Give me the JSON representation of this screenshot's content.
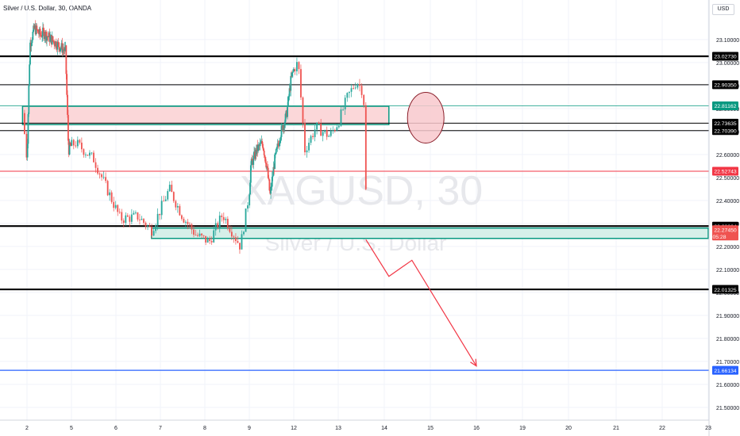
{
  "header": {
    "instrument_title": "Silver / U.S. Dollar, 30, OANDA",
    "currency_button": "USD"
  },
  "watermark": {
    "symbol": "XAGUSD, 30",
    "description": "Silver / U.S. Dollar"
  },
  "colors": {
    "up": "#26a69a",
    "down": "#ef5350",
    "black_level": "#000000",
    "red_level": "#f23645",
    "blue_level": "#2962ff",
    "supply_zone_fill": "#fbd7d9",
    "zone_border": "#089981",
    "demand_zone_fill": "#d6efe9",
    "projection": "#f23645"
  },
  "chart_data": {
    "type": "candlestick",
    "y_axis": {
      "range": [
        21.46,
        23.21
      ],
      "ticks": [
        "23.10000",
        "23.00000",
        "22.90000",
        "22.80000",
        "22.70000",
        "22.60000",
        "22.50000",
        "22.40000",
        "22.30000",
        "22.20000",
        "22.10000",
        "22.00000",
        "21.90000",
        "21.80000",
        "21.70000",
        "21.60000",
        "21.50000"
      ]
    },
    "x_axis": {
      "ticks": [
        "2",
        "5",
        "6",
        "7",
        "8",
        "9",
        "12",
        "13",
        "14",
        "15",
        "16",
        "19",
        "20",
        "21",
        "22",
        "23"
      ]
    },
    "grid": true,
    "price_line": {
      "label": "22.27450",
      "countdown": "05:28"
    },
    "horizontal_levels": [
      {
        "price": 23.0273,
        "label": "23.02730",
        "style": "black_thick"
      },
      {
        "price": 22.9035,
        "label": "22.90350",
        "style": "black"
      },
      {
        "price": 22.81162,
        "label": "22.81162",
        "style": "teal"
      },
      {
        "price": 22.73635,
        "label": "22.73635",
        "style": "black"
      },
      {
        "price": 22.7039,
        "label": "22.70390",
        "style": "black"
      },
      {
        "price": 22.52743,
        "label": "22.52743",
        "style": "red"
      },
      {
        "price": 22.28864,
        "label": "22.28864",
        "style": "black_thick"
      },
      {
        "price": 22.01325,
        "label": "22.01325",
        "style": "black_thick"
      },
      {
        "price": 21.66134,
        "label": "21.66134",
        "style": "blue"
      }
    ],
    "zones": [
      {
        "kind": "supply",
        "price_top": 22.81,
        "price_bottom": 22.73,
        "from_day": 1.9,
        "to_day": 14.1
      },
      {
        "kind": "demand",
        "price_top": 22.28,
        "price_bottom": 22.235,
        "from_day": 6.8,
        "to_day": 23.0
      }
    ],
    "projection_path": [
      {
        "day": 13.6,
        "price": 22.23
      },
      {
        "day": 14.1,
        "price": 22.07
      },
      {
        "day": 14.6,
        "price": 22.14
      },
      {
        "day": 16.0,
        "price": 21.68
      }
    ],
    "circle_annotation": {
      "day": 14.9,
      "price": 22.76
    },
    "price_series": [
      {
        "day": 1.9,
        "price": 22.78
      },
      {
        "day": 2.0,
        "price": 22.58
      },
      {
        "day": 2.2,
        "price": 23.08
      },
      {
        "day": 2.5,
        "price": 23.15
      },
      {
        "day": 2.9,
        "price": 23.12
      },
      {
        "day": 3.1,
        "price": 23.13
      },
      {
        "day": 4.6,
        "price": 23.05
      },
      {
        "day": 4.8,
        "price": 22.62
      },
      {
        "day": 5.1,
        "price": 22.65
      },
      {
        "day": 5.5,
        "price": 22.58
      },
      {
        "day": 5.8,
        "price": 22.45
      },
      {
        "day": 6.1,
        "price": 22.32
      },
      {
        "day": 6.5,
        "price": 22.33
      },
      {
        "day": 6.8,
        "price": 22.27
      },
      {
        "day": 7.2,
        "price": 22.45
      },
      {
        "day": 7.5,
        "price": 22.33
      },
      {
        "day": 7.8,
        "price": 22.25
      },
      {
        "day": 8.1,
        "price": 22.22
      },
      {
        "day": 8.4,
        "price": 22.34
      },
      {
        "day": 8.6,
        "price": 22.27
      },
      {
        "day": 8.8,
        "price": 22.2
      },
      {
        "day": 9.1,
        "price": 22.55
      },
      {
        "day": 9.5,
        "price": 22.62
      },
      {
        "day": 9.9,
        "price": 22.65
      },
      {
        "day": 10.2,
        "price": 22.54
      },
      {
        "day": 10.4,
        "price": 22.42
      },
      {
        "day": 10.7,
        "price": 22.57
      },
      {
        "day": 11.1,
        "price": 22.69
      },
      {
        "day": 11.5,
        "price": 22.77
      },
      {
        "day": 11.8,
        "price": 22.92
      },
      {
        "day": 12.1,
        "price": 23.0
      },
      {
        "day": 12.25,
        "price": 22.62
      },
      {
        "day": 12.5,
        "price": 22.72
      },
      {
        "day": 12.8,
        "price": 22.68
      },
      {
        "day": 13.0,
        "price": 22.74
      },
      {
        "day": 13.2,
        "price": 22.85
      },
      {
        "day": 13.4,
        "price": 22.92
      },
      {
        "day": 13.55,
        "price": 22.87
      },
      {
        "day": 13.62,
        "price": 22.27
      }
    ]
  }
}
